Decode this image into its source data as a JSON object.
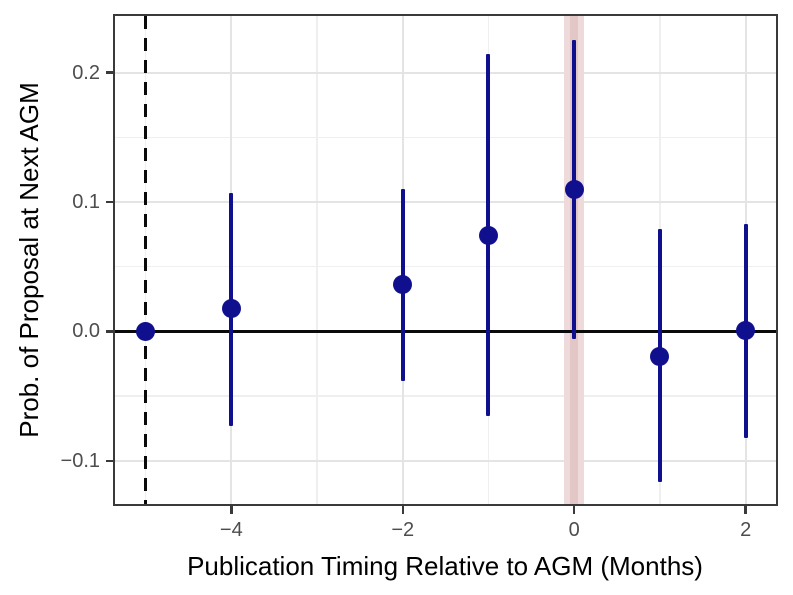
{
  "chart_data": {
    "type": "scatter",
    "subtype": "coefficient-plot-with-error-bars",
    "title": "",
    "xlabel": "Publication Timing Relative to AGM (Months)",
    "ylabel": "Prob. of Proposal at Next AGM",
    "xlim": [
      -5.357,
      2.354
    ],
    "ylim": [
      -0.1333,
      0.2437
    ],
    "grid": true,
    "legend": "none",
    "x_ticks": [
      {
        "v": -4,
        "label": "−4"
      },
      {
        "v": -2,
        "label": "−2"
      },
      {
        "v": 0,
        "label": "0"
      },
      {
        "v": 2,
        "label": "2"
      }
    ],
    "y_ticks": [
      {
        "v": 0.2,
        "label": "0.2"
      },
      {
        "v": 0.1,
        "label": "0.1"
      },
      {
        "v": 0.0,
        "label": "0.0"
      },
      {
        "v": -0.1,
        "label": "−0.1"
      }
    ],
    "x_minor_gridlines": [
      -5,
      -3,
      -1,
      1
    ],
    "y_minor_gridlines": [
      0.15,
      0.05,
      -0.05
    ],
    "colors": {
      "point": "#10108e",
      "zero_line": "#0a0a0a",
      "reference_dashed_line": "#0a0a0a",
      "band_outer": "#eedada",
      "band_inner": "#e3c7c7",
      "panel_border": "#3a3a3a",
      "tick_label": "#4d4d4d"
    },
    "reference_line": {
      "x": -5,
      "style": "dashed"
    },
    "zero_line_y": 0,
    "highlight_band": {
      "x": 0,
      "half_width": 0.12,
      "inner_half_width": 0.045
    },
    "series": [
      {
        "name": "Estimated effect with confidence interval",
        "color": "#10108e",
        "points": [
          {
            "x": -5,
            "y": 0.0,
            "ci_low": null,
            "ci_high": null
          },
          {
            "x": -4,
            "y": 0.018,
            "ci_low": -0.073,
            "ci_high": 0.107
          },
          {
            "x": -2,
            "y": 0.036,
            "ci_low": -0.038,
            "ci_high": 0.11
          },
          {
            "x": -1,
            "y": 0.074,
            "ci_low": -0.065,
            "ci_high": 0.214
          },
          {
            "x": 0,
            "y": 0.11,
            "ci_low": -0.006,
            "ci_high": 0.225
          },
          {
            "x": 1,
            "y": -0.019,
            "ci_low": -0.116,
            "ci_high": 0.079
          },
          {
            "x": 2,
            "y": 0.001,
            "ci_low": -0.082,
            "ci_high": 0.083
          }
        ]
      }
    ]
  }
}
